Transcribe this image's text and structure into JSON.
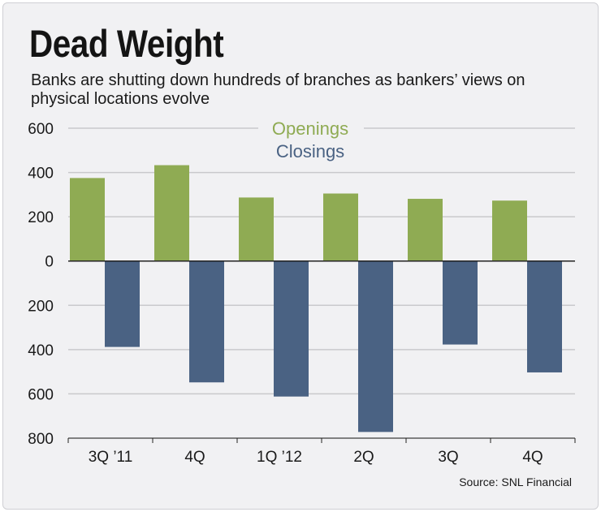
{
  "title": "Dead Weight",
  "subtitle": "Banks are shutting down hundreds of branches as bankers’ views on physical locations evolve",
  "source": "Source: SNL Financial",
  "colors": {
    "openings": "#8fab53",
    "closings": "#4a6283",
    "grid": "#c9c9cc",
    "zero": "#222222"
  },
  "chart_data": {
    "type": "bar",
    "categories": [
      "3Q ’11",
      "4Q",
      "1Q ’12",
      "2Q",
      "3Q",
      "4Q"
    ],
    "series": [
      {
        "name": "Openings",
        "values": [
          375,
          433,
          287,
          305,
          281,
          273
        ]
      },
      {
        "name": "Closings",
        "values": [
          -388,
          -548,
          -612,
          -772,
          -377,
          -503
        ]
      }
    ],
    "yticks": [
      600,
      400,
      200,
      0,
      -200,
      -400,
      -600,
      -800
    ],
    "ytick_labels": [
      "600",
      "400",
      "200",
      "0",
      "200",
      "400",
      "600",
      "800"
    ],
    "ylim": [
      -800,
      600
    ],
    "title": "Dead Weight",
    "xlabel": "",
    "ylabel": "",
    "legend": "top-center",
    "grid": true
  }
}
